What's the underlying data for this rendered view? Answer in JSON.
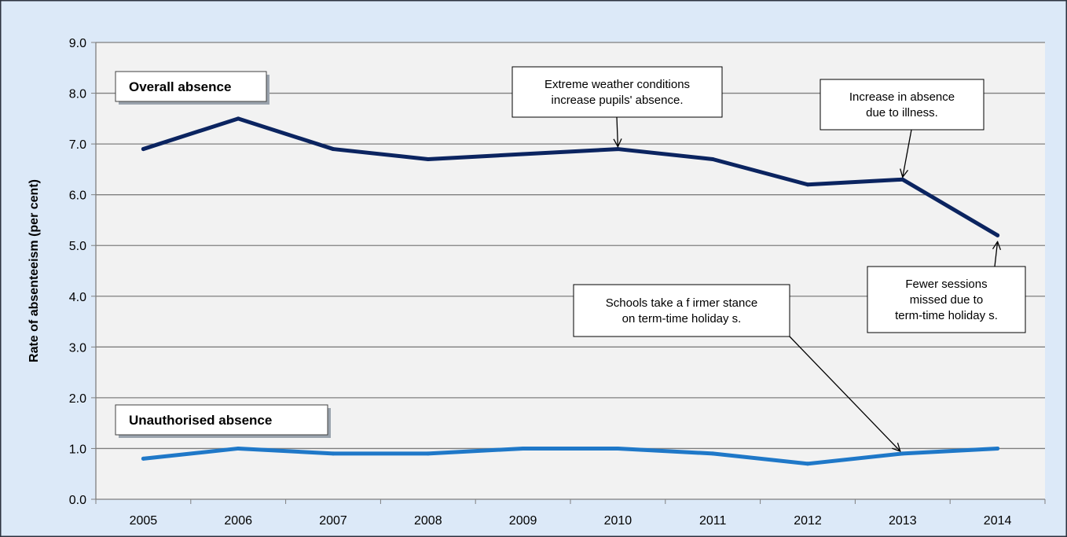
{
  "chart_data": {
    "type": "line",
    "title": "",
    "xlabel": "",
    "ylabel": "Rate of absenteeism (per cent)",
    "categories": [
      "2005",
      "2006",
      "2007",
      "2008",
      "2009",
      "2010",
      "2011",
      "2012",
      "2013",
      "2014"
    ],
    "y_ticks": [
      "0.0",
      "1.0",
      "2.0",
      "3.0",
      "4.0",
      "5.0",
      "6.0",
      "7.0",
      "8.0",
      "9.0"
    ],
    "ylim": [
      0,
      9
    ],
    "grid": true,
    "legend": "none",
    "series": [
      {
        "name": "Overall absence",
        "color": "#0b2460",
        "values": [
          6.9,
          7.5,
          6.9,
          6.7,
          6.8,
          6.9,
          6.7,
          6.2,
          6.3,
          5.2
        ]
      },
      {
        "name": "Unauthorised absence",
        "color": "#1f78c8",
        "values": [
          0.8,
          1.0,
          0.9,
          0.9,
          1.0,
          1.0,
          0.9,
          0.7,
          0.9,
          1.0
        ]
      }
    ],
    "annotations": [
      {
        "lines": [
          "Extreme weather conditions",
          "increase pupils' absence."
        ],
        "target_series": 0,
        "target_index": 5
      },
      {
        "lines": [
          "Increase in absence",
          "due to illness."
        ],
        "target_series": 0,
        "target_index": 8
      },
      {
        "lines": [
          "Fewer sessions",
          "missed due to",
          "term-time holiday s."
        ],
        "target_series": 0,
        "target_index": 9
      },
      {
        "lines": [
          "Schools take a f irmer stance",
          "on term-time holiday s."
        ],
        "target_series": 1,
        "target_index": 8
      }
    ],
    "colors": {
      "background": "#dce9f8",
      "plot_area": "#f2f2f2",
      "gridline": "#7f7f7f",
      "frame": "#2e3440"
    }
  }
}
